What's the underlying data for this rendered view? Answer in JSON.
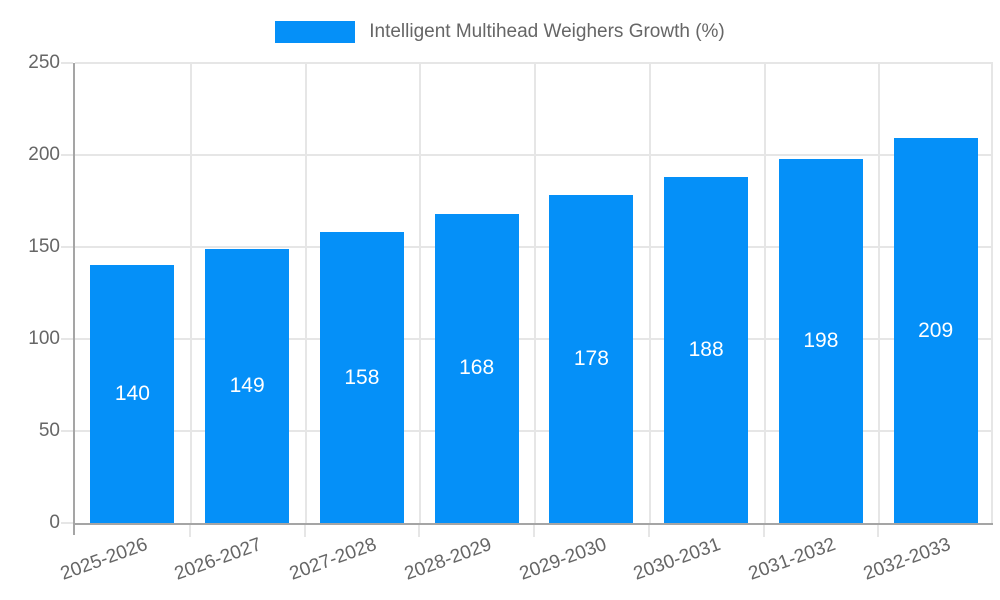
{
  "legend": {
    "label": "Intelligent Multihead Weighers Growth (%)"
  },
  "colors": {
    "bar": "#0590f8",
    "grid": "#e6e6e6",
    "axis": "#a5a5a5",
    "tick_label": "#666666",
    "value_label": "#ffffff",
    "background": "#ffffff"
  },
  "chart_data": {
    "type": "bar",
    "title": "Intelligent Multihead Weighers Growth (%)",
    "categories": [
      "2025-2026",
      "2026-2027",
      "2027-2028",
      "2028-2029",
      "2029-2030",
      "2030-2031",
      "2031-2032",
      "2032-2033"
    ],
    "values": [
      140,
      149,
      158,
      168,
      178,
      188,
      198,
      209
    ],
    "xlabel": "",
    "ylabel": "",
    "ylim": [
      0,
      250
    ],
    "yticks": [
      0,
      50,
      100,
      150,
      200,
      250
    ],
    "grid": true,
    "legend_position": "top-center",
    "value_labels": "inside-center",
    "x_tick_rotation_deg": -20
  }
}
